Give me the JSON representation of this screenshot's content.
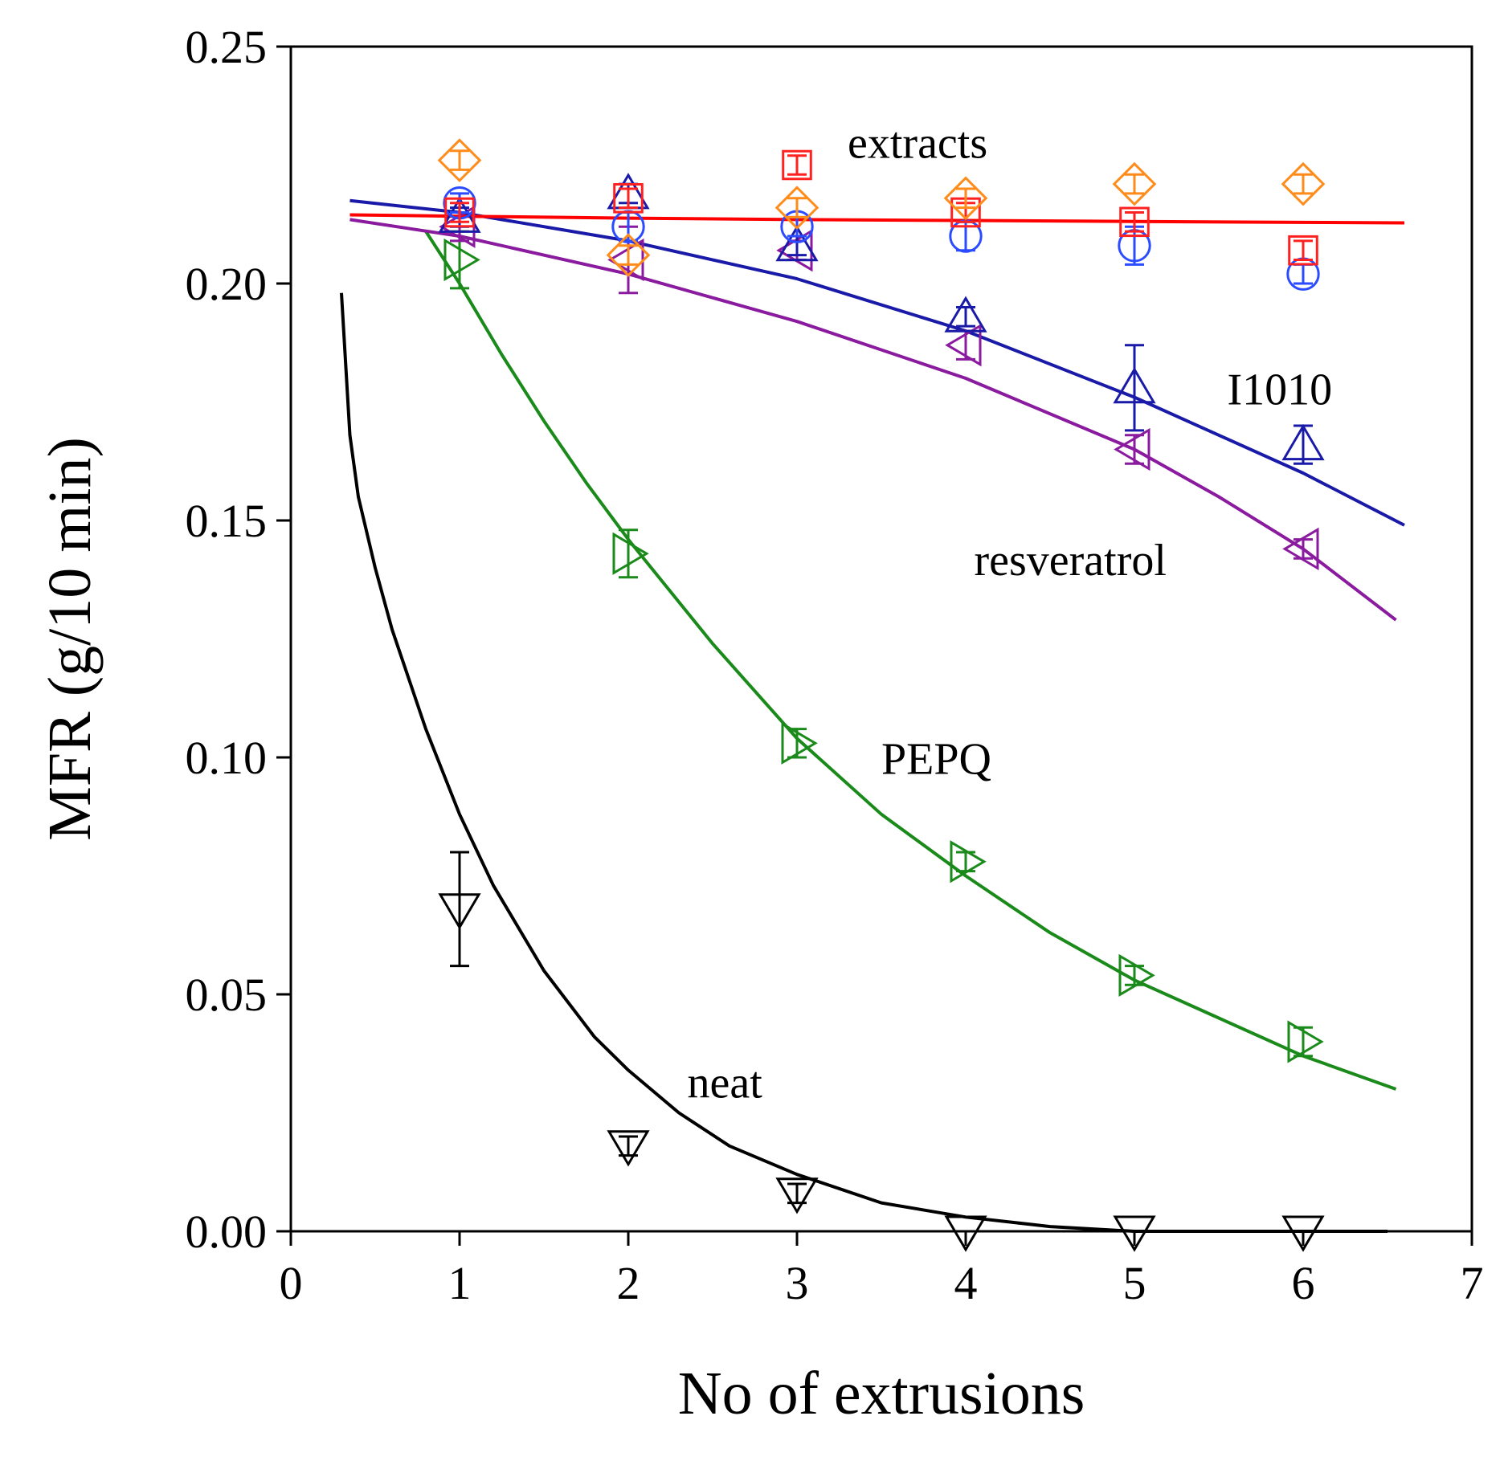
{
  "chart_data": {
    "type": "scatter",
    "title": "",
    "xlabel": "No of extrusions",
    "ylabel": "MFR (g/10 min)",
    "xlim": [
      0,
      7
    ],
    "ylim": [
      0,
      0.25
    ],
    "x_ticks": [
      0,
      1,
      2,
      3,
      4,
      5,
      6,
      7
    ],
    "x_tick_labels": [
      "0",
      "1",
      "2",
      "3",
      "4",
      "5",
      "6",
      "7"
    ],
    "y_ticks": [
      0,
      0.05,
      0.1,
      0.15,
      0.2,
      0.25
    ],
    "y_tick_labels": [
      "0.00",
      "0.05",
      "0.10",
      "0.15",
      "0.20",
      "0.25"
    ],
    "grid": false,
    "annotations": [
      {
        "text": "extracts",
        "x": 3.3,
        "y": 0.2265
      },
      {
        "text": "I1010",
        "x": 5.55,
        "y": 0.1745
      },
      {
        "text": "resveratrol",
        "x": 4.05,
        "y": 0.1385
      },
      {
        "text": "PEPQ",
        "x": 3.5,
        "y": 0.0965
      },
      {
        "text": "neat",
        "x": 2.35,
        "y": 0.0282
      }
    ],
    "series": [
      {
        "name": "neat",
        "color": "#000000",
        "marker": "triangle-down",
        "x": [
          1,
          2,
          3,
          4,
          5,
          6
        ],
        "y": [
          0.068,
          0.018,
          0.008,
          0.0,
          0.0,
          0.0
        ],
        "err": [
          0.012,
          0.002,
          0.002,
          0.0,
          0.0,
          0.0
        ]
      },
      {
        "name": "PEPQ",
        "color": "#1a8a1a",
        "marker": "triangle-right",
        "x": [
          1,
          2,
          3,
          4,
          5,
          6
        ],
        "y": [
          0.205,
          0.143,
          0.103,
          0.078,
          0.054,
          0.04
        ],
        "err": [
          0.006,
          0.005,
          0.003,
          0.002,
          0.002,
          0.003
        ]
      },
      {
        "name": "resveratrol",
        "color": "#8a1a9e",
        "marker": "triangle-left",
        "x": [
          1,
          2,
          3,
          4,
          5,
          6
        ],
        "y": [
          0.212,
          0.205,
          0.207,
          0.187,
          0.165,
          0.144
        ],
        "err": [
          0.003,
          0.007,
          0.002,
          0.003,
          0.003,
          0.002
        ]
      },
      {
        "name": "I1010",
        "color": "#1a1aa8",
        "marker": "triangle-up",
        "x": [
          1,
          2,
          3,
          4,
          5,
          6
        ],
        "y": [
          0.214,
          0.219,
          0.208,
          0.193,
          0.178,
          0.166
        ],
        "err": [
          0.002,
          0.002,
          0.002,
          0.002,
          0.009,
          0.004
        ]
      },
      {
        "name": "extracts-circle",
        "color": "#2a4bff",
        "marker": "circle",
        "x": [
          1,
          2,
          3,
          4,
          5,
          6
        ],
        "y": [
          0.217,
          0.212,
          0.212,
          0.21,
          0.208,
          0.202
        ],
        "err": [
          0.002,
          0.003,
          0.002,
          0.003,
          0.004,
          0.002
        ]
      },
      {
        "name": "extracts-square",
        "color": "#ff2020",
        "marker": "square",
        "x": [
          1,
          2,
          3,
          4,
          5,
          6
        ],
        "y": [
          0.215,
          0.218,
          0.225,
          0.215,
          0.213,
          0.207
        ],
        "err": [
          0.002,
          0.002,
          0.002,
          0.002,
          0.002,
          0.002
        ]
      },
      {
        "name": "extracts-diamond",
        "color": "#ff8c1a",
        "marker": "diamond",
        "x": [
          1,
          2,
          3,
          4,
          5,
          6
        ],
        "y": [
          0.226,
          0.206,
          0.216,
          0.218,
          0.221,
          0.221
        ],
        "err": [
          0.002,
          0.002,
          0.002,
          0.002,
          0.002,
          0.002
        ]
      }
    ],
    "fit_curves": [
      {
        "name": "neat-fit",
        "color": "#000000",
        "x": [
          0.3,
          0.35,
          0.4,
          0.5,
          0.6,
          0.8,
          1.0,
          1.2,
          1.5,
          1.8,
          2.0,
          2.3,
          2.6,
          3.0,
          3.5,
          4.0,
          4.5,
          5.0,
          5.5,
          6.0,
          6.5
        ],
        "y": [
          0.198,
          0.168,
          0.155,
          0.14,
          0.127,
          0.106,
          0.088,
          0.073,
          0.055,
          0.041,
          0.034,
          0.025,
          0.018,
          0.012,
          0.006,
          0.003,
          0.001,
          0.0,
          0.0,
          0.0,
          0.0
        ]
      },
      {
        "name": "PEPQ-fit",
        "color": "#1a8a1a",
        "x": [
          0.8,
          1.0,
          1.25,
          1.5,
          1.75,
          2.0,
          2.5,
          3.0,
          3.5,
          4.0,
          4.5,
          5.0,
          5.5,
          6.0,
          6.55
        ],
        "y": [
          0.211,
          0.2,
          0.185,
          0.171,
          0.158,
          0.146,
          0.124,
          0.104,
          0.088,
          0.075,
          0.063,
          0.053,
          0.045,
          0.037,
          0.03
        ]
      },
      {
        "name": "resveratrol-fit",
        "color": "#8a1a9e",
        "x": [
          0.35,
          1.0,
          2.0,
          3.0,
          4.0,
          5.0,
          5.5,
          6.0,
          6.55
        ],
        "y": [
          0.2135,
          0.21,
          0.202,
          0.192,
          0.18,
          0.165,
          0.155,
          0.144,
          0.129
        ]
      },
      {
        "name": "I1010-fit",
        "color": "#1a1aa8",
        "x": [
          0.35,
          1.0,
          2.0,
          3.0,
          4.0,
          5.0,
          5.5,
          6.0,
          6.6
        ],
        "y": [
          0.2175,
          0.215,
          0.209,
          0.201,
          0.19,
          0.176,
          0.168,
          0.16,
          0.149
        ]
      },
      {
        "name": "extracts-fit",
        "color": "#ff0000",
        "x": [
          0.35,
          1.0,
          2.0,
          3.0,
          4.0,
          5.0,
          6.0,
          6.6
        ],
        "y": [
          0.2145,
          0.2142,
          0.2138,
          0.2135,
          0.2133,
          0.2131,
          0.2129,
          0.2128
        ]
      }
    ]
  }
}
